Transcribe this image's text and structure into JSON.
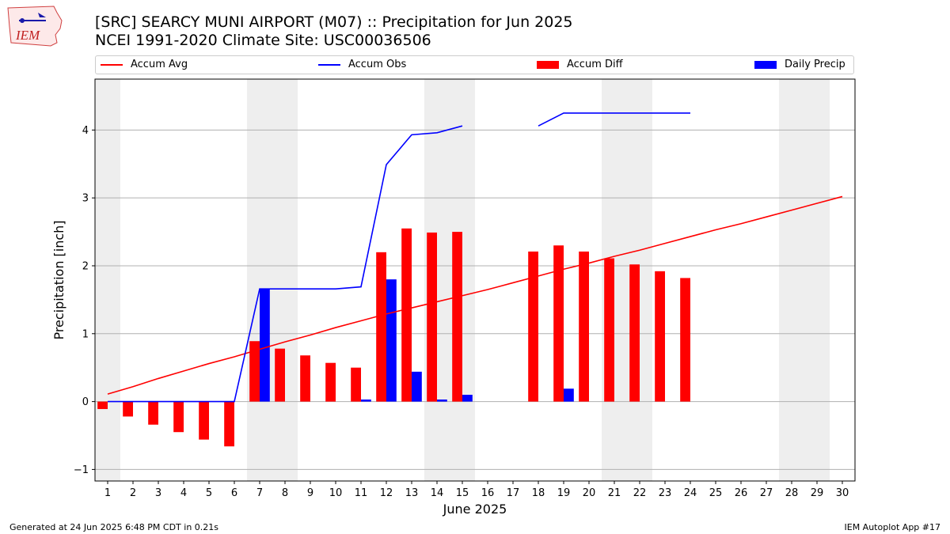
{
  "header": {
    "title_line1": "[SRC] SEARCY MUNI AIRPORT (M07) :: Precipitation for Jun 2025",
    "title_line2": "NCEI 1991-2020 Climate Site: USC00036506"
  },
  "logo": {
    "text": "IEM"
  },
  "footer": {
    "left": "Generated at 24 Jun 2025 6:48 PM CDT in 0.21s",
    "right": "IEM Autoplot App #17"
  },
  "chart_data": {
    "type": "bar",
    "title": "[SRC] SEARCY MUNI AIRPORT (M07) :: Precipitation for Jun 2025",
    "xlabel": "June 2025",
    "ylabel": "Precipitation [inch]",
    "ylim": [
      -1.17,
      4.75
    ],
    "xlim": [
      0.5,
      30.5
    ],
    "grid": true,
    "legend_position": "top",
    "x": [
      1,
      2,
      3,
      4,
      5,
      6,
      7,
      8,
      9,
      10,
      11,
      12,
      13,
      14,
      15,
      16,
      17,
      18,
      19,
      20,
      21,
      22,
      23,
      24,
      25,
      26,
      27,
      28,
      29,
      30
    ],
    "yticks": [
      -1,
      0,
      1,
      2,
      3,
      4
    ],
    "weekend_shading": [
      [
        0.5,
        1.5
      ],
      [
        6.5,
        8.5
      ],
      [
        13.5,
        15.5
      ],
      [
        20.5,
        22.5
      ],
      [
        27.5,
        29.5
      ]
    ],
    "series": [
      {
        "name": "Accum Avg",
        "kind": "line",
        "color": "#ff0000",
        "values": [
          0.11,
          0.22,
          0.34,
          0.45,
          0.56,
          0.66,
          0.77,
          0.88,
          0.98,
          1.09,
          1.19,
          1.29,
          1.38,
          1.47,
          1.56,
          1.65,
          1.75,
          1.85,
          1.95,
          2.04,
          2.14,
          2.23,
          2.33,
          2.43,
          2.53,
          2.62,
          2.72,
          2.82,
          2.92,
          3.02
        ]
      },
      {
        "name": "Accum Obs",
        "kind": "line",
        "color": "#0000ff",
        "values": [
          0,
          0,
          0,
          0,
          0,
          0,
          1.66,
          1.66,
          1.66,
          1.66,
          1.69,
          3.49,
          3.93,
          3.96,
          4.06,
          null,
          null,
          4.06,
          4.25,
          4.25,
          4.25,
          4.25,
          4.25,
          4.25,
          null,
          null,
          null,
          null,
          null,
          null
        ]
      },
      {
        "name": "Accum Diff",
        "kind": "bar",
        "color": "#ff0000",
        "offset": -0.2,
        "values": [
          -0.11,
          -0.22,
          -0.34,
          -0.45,
          -0.56,
          -0.66,
          0.89,
          0.78,
          0.68,
          0.57,
          0.5,
          2.2,
          2.55,
          2.49,
          2.5,
          null,
          null,
          2.21,
          2.3,
          2.21,
          2.11,
          2.02,
          1.92,
          1.82,
          null,
          null,
          null,
          null,
          null,
          null
        ]
      },
      {
        "name": "Daily Precip",
        "kind": "bar",
        "color": "#0000ff",
        "offset": 0.2,
        "values": [
          0,
          0,
          0,
          0,
          0,
          0,
          1.66,
          0,
          0,
          0,
          0.03,
          1.8,
          0.44,
          0.03,
          0.1,
          null,
          null,
          0,
          0.19,
          0,
          0,
          0,
          0,
          0,
          null,
          null,
          null,
          null,
          null,
          null
        ]
      }
    ]
  }
}
